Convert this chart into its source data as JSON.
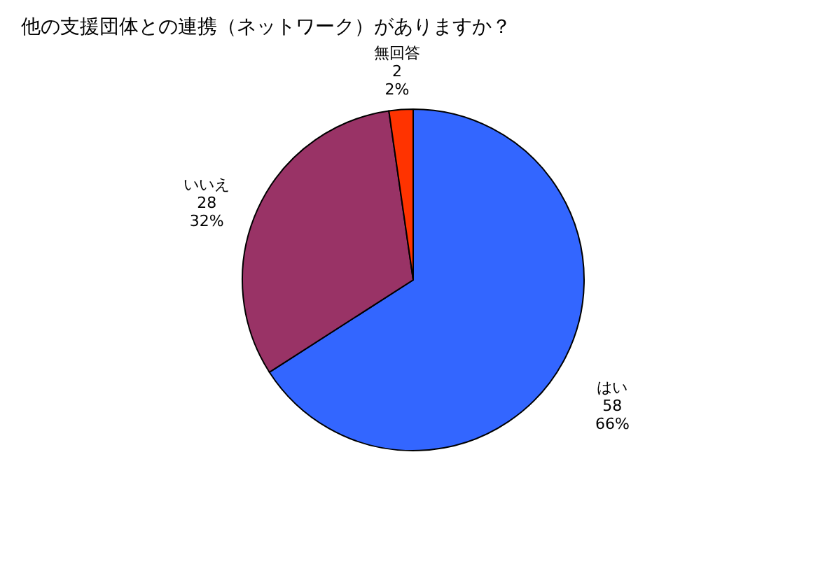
{
  "chart_data": {
    "type": "pie",
    "title": "他の支援団体との連携（ネットワーク）がありますか？",
    "categories": [
      "はい",
      "いいえ",
      "無回答"
    ],
    "values": [
      58,
      28,
      2
    ],
    "colors": [
      "#3366ff",
      "#993366",
      "#ff3300"
    ],
    "value_labels": [
      "58\n66%",
      "28\n32%",
      "2\n2%"
    ],
    "legend": false
  }
}
